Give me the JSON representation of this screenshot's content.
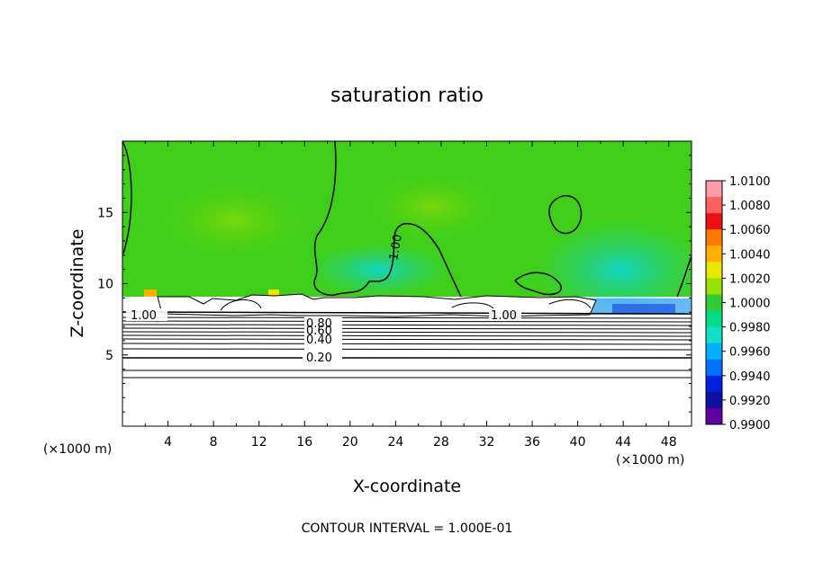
{
  "chart_data": {
    "type": "heatmap",
    "title": "saturation ratio",
    "xlabel": "X-coordinate",
    "ylabel": "Z-coordinate",
    "x_unit_left": "(×1000 m)",
    "x_unit_right": "(×1000 m)",
    "xlim": [
      0,
      50
    ],
    "ylim": [
      0,
      20
    ],
    "x_ticks": [
      "4",
      "8",
      "12",
      "16",
      "20",
      "24",
      "28",
      "32",
      "36",
      "40",
      "44",
      "48"
    ],
    "y_ticks": [
      "5",
      "10",
      "15"
    ],
    "colorbar": {
      "labels": [
        "1.0100",
        "1.0080",
        "1.0060",
        "1.0040",
        "1.0020",
        "1.0000",
        "0.9980",
        "0.9960",
        "0.9940",
        "0.9920",
        "0.9900"
      ],
      "colors": [
        "#ff9aa8",
        "#ff6060",
        "#ee1010",
        "#ff7a00",
        "#ffb000",
        "#e8e800",
        "#9ae000",
        "#33cc33",
        "#00dd88",
        "#10e0c8",
        "#00b0ff",
        "#0070ff",
        "#0020e0",
        "#1010a0",
        "#6000a0"
      ]
    },
    "background_value": 1.0,
    "contour_labels": [
      "1.00",
      "1.00",
      "1.00",
      "0.80",
      "0.60",
      "0.40",
      "0.20"
    ],
    "footer": "CONTOUR INTERVAL = 1.000E-01"
  }
}
